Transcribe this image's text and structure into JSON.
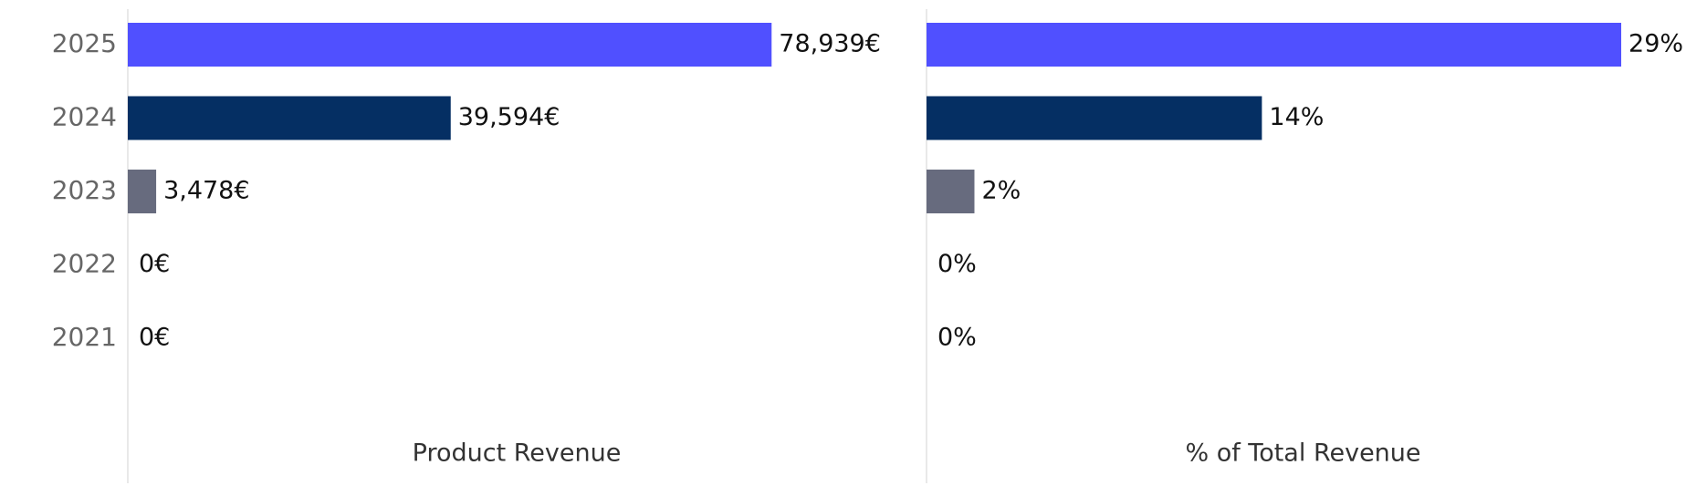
{
  "chart_data": [
    {
      "type": "barh",
      "xlabel": "Product Revenue",
      "categories": [
        "2025",
        "2024",
        "2023",
        "2022",
        "2021"
      ],
      "values": [
        78939,
        39594,
        3478,
        0,
        0
      ],
      "value_labels": [
        "78,939€",
        "39,594€",
        "3,478€",
        "0€",
        "0€"
      ],
      "colors": [
        "#5050ff",
        "#052f63",
        "#676b7e",
        "#c8c8c8",
        "#c8c8c8"
      ],
      "xlim": [
        0,
        97600
      ]
    },
    {
      "type": "barh",
      "xlabel": "% of Total Revenue",
      "values": [
        29,
        14,
        2,
        0,
        0
      ],
      "value_labels": [
        "29%",
        "14%",
        "2%",
        "0%",
        "0%"
      ],
      "colors": [
        "#5050ff",
        "#052f63",
        "#676b7e",
        "#c8c8c8",
        "#c8c8c8"
      ],
      "xlim": [
        0,
        32.2
      ]
    }
  ]
}
